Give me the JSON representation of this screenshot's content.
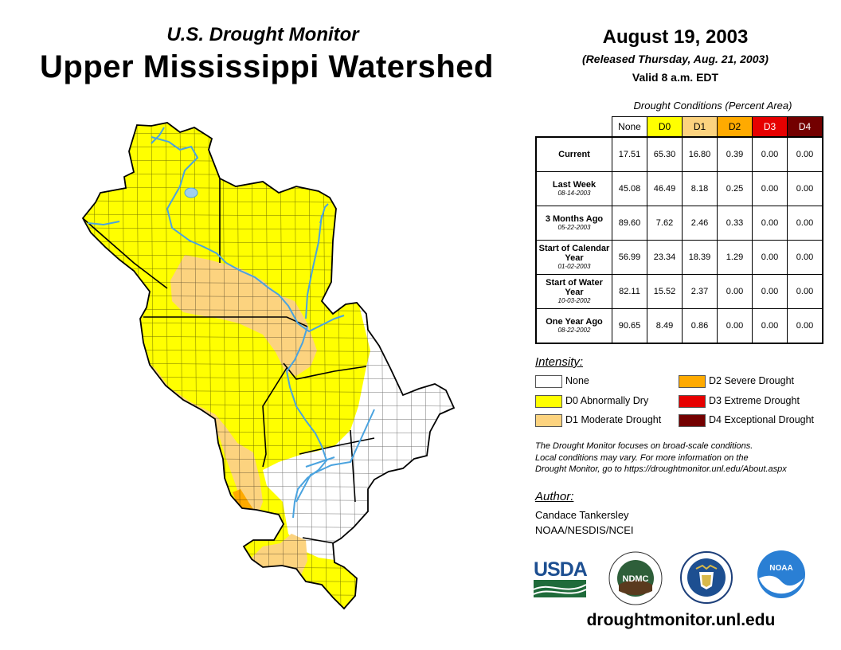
{
  "header": {
    "subtitle": "U.S. Drought Monitor",
    "title": "Upper Mississippi Watershed",
    "date": "August 19, 2003",
    "released": "(Released Thursday, Aug. 21, 2003)",
    "valid": "Valid 8 a.m. EDT"
  },
  "table": {
    "caption": "Drought Conditions (Percent Area)",
    "columns": [
      {
        "label": "None",
        "color": "#ffffff"
      },
      {
        "label": "D0",
        "color": "#ffff00"
      },
      {
        "label": "D1",
        "color": "#fcd37f"
      },
      {
        "label": "D2",
        "color": "#ffaa00"
      },
      {
        "label": "D3",
        "color": "#e60000"
      },
      {
        "label": "D4",
        "color": "#730000"
      }
    ],
    "rows": [
      {
        "label": "Current",
        "date": "",
        "values": [
          "17.51",
          "65.30",
          "16.80",
          "0.39",
          "0.00",
          "0.00"
        ]
      },
      {
        "label": "Last Week",
        "date": "08-14-2003",
        "values": [
          "45.08",
          "46.49",
          "8.18",
          "0.25",
          "0.00",
          "0.00"
        ]
      },
      {
        "label": "3 Months Ago",
        "date": "05-22-2003",
        "values": [
          "89.60",
          "7.62",
          "2.46",
          "0.33",
          "0.00",
          "0.00"
        ]
      },
      {
        "label": "Start of Calendar Year",
        "date": "01-02-2003",
        "values": [
          "56.99",
          "23.34",
          "18.39",
          "1.29",
          "0.00",
          "0.00"
        ]
      },
      {
        "label": "Start of Water Year",
        "date": "10-03-2002",
        "values": [
          "82.11",
          "15.52",
          "2.37",
          "0.00",
          "0.00",
          "0.00"
        ]
      },
      {
        "label": "One Year Ago",
        "date": "08-22-2002",
        "values": [
          "90.65",
          "8.49",
          "0.86",
          "0.00",
          "0.00",
          "0.00"
        ]
      }
    ]
  },
  "legend": {
    "heading": "Intensity:",
    "items": [
      {
        "label": "None",
        "color": "#ffffff"
      },
      {
        "label": "D0 Abnormally Dry",
        "color": "#ffff00"
      },
      {
        "label": "D1 Moderate Drought",
        "color": "#fcd37f"
      },
      {
        "label": "D2 Severe Drought",
        "color": "#ffaa00"
      },
      {
        "label": "D3 Extreme Drought",
        "color": "#e60000"
      },
      {
        "label": "D4 Exceptional Drought",
        "color": "#730000"
      }
    ]
  },
  "note": {
    "line1": "The Drought Monitor focuses on broad-scale conditions.",
    "line2": "Local conditions may vary. For more information on the",
    "line3": "Drought Monitor, go to https://droughtmonitor.unl.edu/About.aspx"
  },
  "author": {
    "heading": "Author:",
    "name": "Candace Tankersley",
    "org": "NOAA/NESDIS/NCEI"
  },
  "logos": {
    "usda": "USDA",
    "ndmc": "NDMC",
    "noaa": "NOAA"
  },
  "url": "droughtmonitor.unl.edu",
  "map_colors": {
    "none": "#ffffff",
    "d0": "#ffff00",
    "d1": "#fcd37f",
    "d2": "#ffaa00",
    "water": "#4aa3df",
    "lake": "#9fcfee"
  }
}
